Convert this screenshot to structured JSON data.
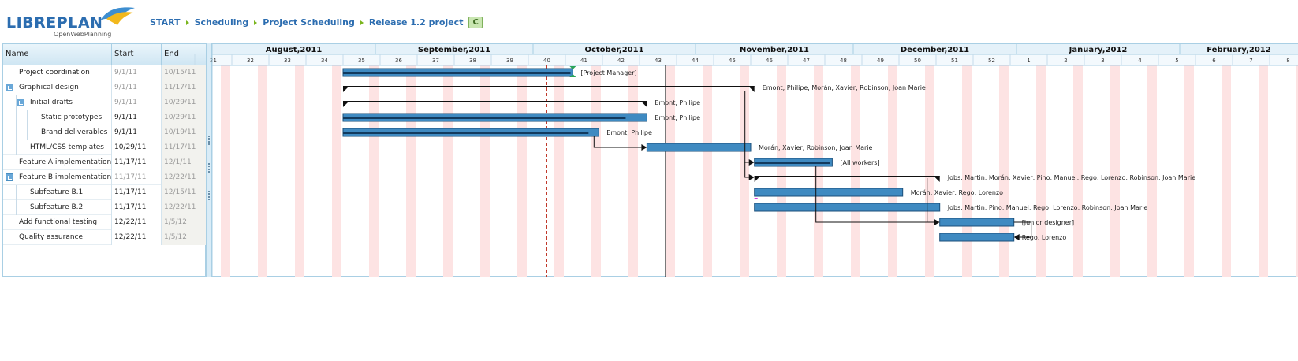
{
  "app": {
    "logo_text_a": "LIBRE",
    "logo_text_b": "PLAN",
    "logo_sub": "OpenWebPlanning"
  },
  "breadcrumb": [
    {
      "label": "START"
    },
    {
      "label": "Scheduling"
    },
    {
      "label": "Project Scheduling"
    },
    {
      "label": "Release 1.2 project"
    }
  ],
  "mode_badge": "C",
  "table": {
    "headers": {
      "name": "Name",
      "start": "Start",
      "end": "End"
    },
    "rows": [
      {
        "name": "Project coordination",
        "start": "9/1/11",
        "end": "10/15/11",
        "level": 0,
        "toggle": false,
        "start_muted": true
      },
      {
        "name": "Graphical design",
        "start": "9/1/11",
        "end": "11/17/11",
        "level": 0,
        "toggle": true,
        "start_muted": true
      },
      {
        "name": "Initial drafts",
        "start": "9/1/11",
        "end": "10/29/11",
        "level": 1,
        "toggle": true,
        "start_muted": true
      },
      {
        "name": "Static prototypes",
        "start": "9/1/11",
        "end": "10/29/11",
        "level": 2,
        "toggle": false,
        "start_muted": false
      },
      {
        "name": "Brand deliverables",
        "start": "9/1/11",
        "end": "10/19/11",
        "level": 2,
        "toggle": false,
        "start_muted": false
      },
      {
        "name": "HTML/CSS templates",
        "start": "10/29/11",
        "end": "11/17/11",
        "level": 1,
        "toggle": false,
        "start_muted": false
      },
      {
        "name": "Feature A implementation",
        "start": "11/17/11",
        "end": "12/1/11",
        "level": 0,
        "toggle": false,
        "start_muted": false
      },
      {
        "name": "Feature B implementation",
        "start": "11/17/11",
        "end": "12/22/11",
        "level": 0,
        "toggle": true,
        "start_muted": true
      },
      {
        "name": "Subfeature B.1",
        "start": "11/17/11",
        "end": "12/15/11",
        "level": 1,
        "toggle": false,
        "start_muted": false
      },
      {
        "name": "Subfeature B.2",
        "start": "11/17/11",
        "end": "12/22/11",
        "level": 1,
        "toggle": false,
        "start_muted": false
      },
      {
        "name": "Add functional testing",
        "start": "12/22/11",
        "end": "1/5/12",
        "level": 0,
        "toggle": false,
        "start_muted": false
      },
      {
        "name": "Quality assurance",
        "start": "12/22/11",
        "end": "1/5/12",
        "level": 0,
        "toggle": false,
        "start_muted": false
      }
    ]
  },
  "timeline": {
    "months": [
      {
        "label": "August,2011",
        "weeks": 4
      },
      {
        "label": "September,2011",
        "weeks": 4
      },
      {
        "label": "October,2011",
        "weeks": 4.3
      },
      {
        "label": "November,2011",
        "weeks": 4.2
      },
      {
        "label": "December,2011",
        "weeks": 4.4
      },
      {
        "label": "January,2012",
        "weeks": 4.4
      },
      {
        "label": "February,2012",
        "weeks": 4
      }
    ],
    "weeks": [
      "31",
      "32",
      "33",
      "34",
      "35",
      "36",
      "37",
      "38",
      "39",
      "40",
      "41",
      "42",
      "43",
      "44",
      "45",
      "46",
      "47",
      "48",
      "49",
      "50",
      "51",
      "52",
      "1",
      "2",
      "3",
      "4",
      "5",
      "6",
      "7",
      "8"
    ],
    "today_week": 40.5,
    "status_week": 43.7
  },
  "bars": [
    {
      "type": "task",
      "start": 35.0,
      "end": 41.2,
      "progress": 0.99,
      "label": "[Project Manager]"
    },
    {
      "type": "group",
      "start": 35.0,
      "end": 46.1,
      "label": "Emont, Philipe, Morán, Xavier, Robinson, Joan Marie"
    },
    {
      "type": "group",
      "start": 35.0,
      "end": 43.2,
      "label": "Emont, Philipe"
    },
    {
      "type": "task",
      "start": 35.0,
      "end": 43.2,
      "progress": 0.93,
      "label": "Emont, Philipe"
    },
    {
      "type": "task",
      "start": 35.0,
      "end": 41.9,
      "progress": 0.96,
      "label": "Emont, Philipe"
    },
    {
      "type": "task",
      "start": 43.2,
      "end": 46.0,
      "progress": 0.0,
      "label": "Morán, Xavier, Robinson, Joan Marie"
    },
    {
      "type": "task",
      "start": 46.1,
      "end": 48.2,
      "progress": 0.97,
      "label": "[All workers]"
    },
    {
      "type": "group",
      "start": 46.1,
      "end": 51.1,
      "label": "Jobs, Martin, Morán, Xavier, Pino, Manuel, Rego, Lorenzo, Robinson, Joan Marie"
    },
    {
      "type": "task",
      "start": 46.1,
      "end": 50.1,
      "progress": 0.0,
      "label": "Morán, Xavier, Rego, Lorenzo"
    },
    {
      "type": "task",
      "start": 46.1,
      "end": 51.1,
      "progress": 0.0,
      "label": "Jobs, Martin, Pino, Manuel, Rego, Lorenzo, Robinson, Joan Marie"
    },
    {
      "type": "task",
      "start": 51.1,
      "end": 53.1,
      "progress": 0.0,
      "label": "[Junior designer]"
    },
    {
      "type": "task",
      "start": 51.1,
      "end": 53.1,
      "progress": 0.0,
      "label": "Rego, Lorenzo"
    }
  ],
  "colors": {
    "bar": "#3f8ac1",
    "progress": "#123a5e",
    "today": "#c0392b",
    "weekend": "#fde3e3",
    "accent": "#2c6db0"
  }
}
